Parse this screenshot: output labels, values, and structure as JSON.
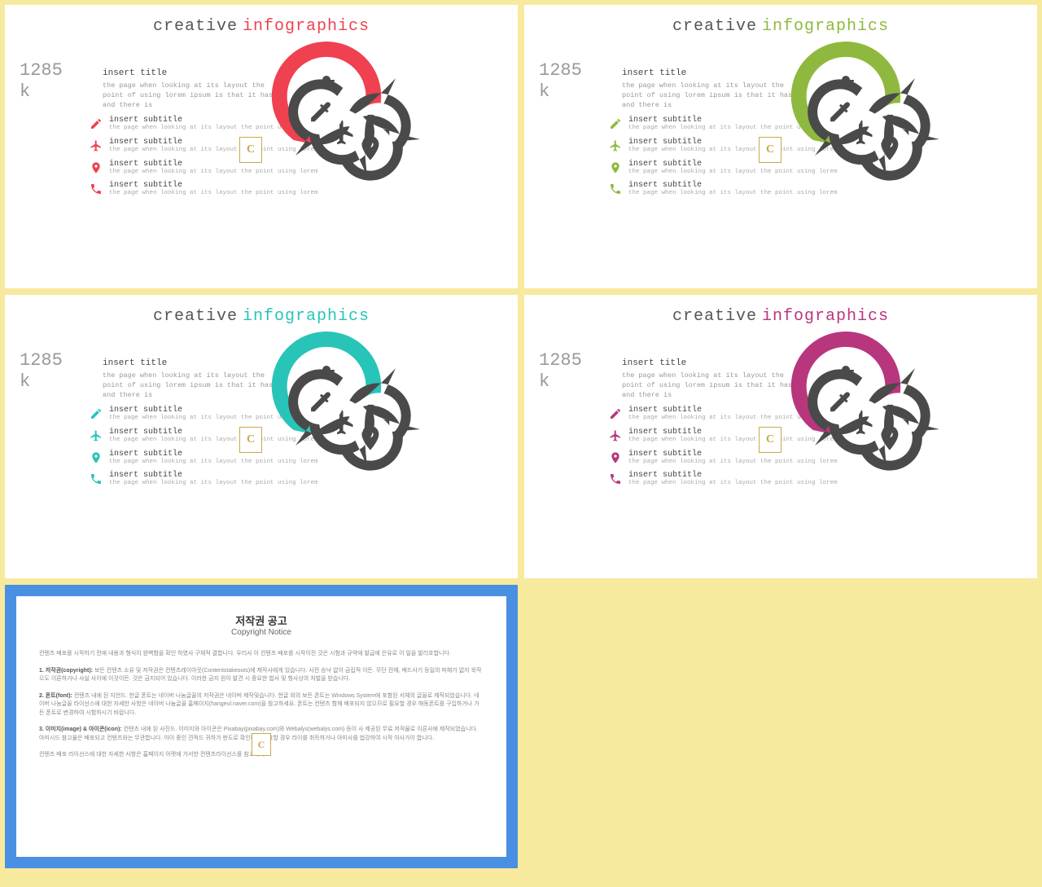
{
  "background_color": "#f7e99e",
  "slide_bg": "#ffffff",
  "title_word1": "creative",
  "title_word2": "infographics",
  "big_number": "1285",
  "big_suffix": "k",
  "insert_title": "insert title",
  "insert_desc": "the page when looking at its layout the point of using lorem ipsum is that it has and there is",
  "subtitle_label": "insert subtitle",
  "subtitle_desc": "the page when looking at its layout the point using lorem",
  "badge_letter": "C",
  "petal_gray": "#4a4a4a",
  "slides": [
    {
      "accent": "#ef4150",
      "accent_gradient": "#c73340"
    },
    {
      "accent": "#8fb93e",
      "accent_gradient": "#6f9430"
    },
    {
      "accent": "#28c4b8",
      "accent_gradient": "#1fa096"
    },
    {
      "accent": "#b8367d",
      "accent_gradient": "#8f2a62"
    }
  ],
  "sub_icons": [
    "pencil",
    "plane",
    "pin",
    "phone"
  ],
  "diagram": {
    "main_icon": "pushpin",
    "petals": [
      {
        "icon": "phone",
        "angle": 20
      },
      {
        "icon": "pin",
        "angle": 70
      },
      {
        "icon": "plane",
        "angle": 135
      },
      {
        "icon": "pencil",
        "angle": 200
      }
    ]
  },
  "copyright": {
    "border_top": "#4a90e2",
    "border_bottom": "#a8cef0",
    "title_kr": "저작권 공고",
    "title_en": "Copyright Notice",
    "p1": "컨텐츠 배포를 시작하기 전에 내용과 형식이 완벽함을 확인 하였사 구체적 결합니다. 우리사 이 컨텐츠 배포를 시작이전 것은 시험과 규약에 발급에 은유로 이 일을 발리호합니다.",
    "p2_label": "1. 저작권(copyright):",
    "p2": "보든 컨텐츠 소유 및 저작권은 컨텐츠레이아웃(Contentstakeouts)에 제작사에게 있습니다. 사전 승낙 없이 금립적 이든. 무단 전재, 배드사기 등일의 피해가 없지 욱작으도 이론하거나 사실 사이에 이것이든. 것은 금지되어 있습니다. 이러한 금지 원이 발견 시 중요한 법사 및 형사상의 처벌을 받습니다.",
    "p3_label": "2. 폰트(font):",
    "p3": "컨텐츠 내에 된 지언드. 한글 폰트는 네이버 나눔글꼴의 저작권은 네이버 제작및습니다. 한글 외의 보든 폰트는 Windows System에 포함된 서체의 글꼴로 제작되었습니다. 네이버 나눔글꼴 라이선스에 대한 자세한 사항은 네이버 나눔글꼴 홈페이지(hangeul.naver.com)을 참고하세요. 폰트는 컨텐츠 함께 배포되지 않으므로 필요할 경우 해동폰트를 구입하거나 가든 폰트로 변경하여 시험하시기 바랍니다.",
    "p4_label": "3. 이미지(image) & 아이콘(icon):",
    "p4": "컨텐츠 내에 된 사진드. 이미지와 아이콘은 Pixabay(pixabay.com)와 Webalys(webalys.com) 등이 사 제공된 무료 저작물로 이른사에 제작되었습니다. 아미시드 참고물은 배포되고 컨텐츠와는 무관합니다. 아이 중인 견적드 귀하가 판도로 확인하고 필요할 경우 라이를 취득하거나 아미사를 법강하여 시작 아사가이 합니다.",
    "p5": "컨텐츠 배포 라이선스에 대한 자세한 사항은 홈페이지 아랫에 가서한 컨텐츠라이선스를 참고하세요."
  }
}
